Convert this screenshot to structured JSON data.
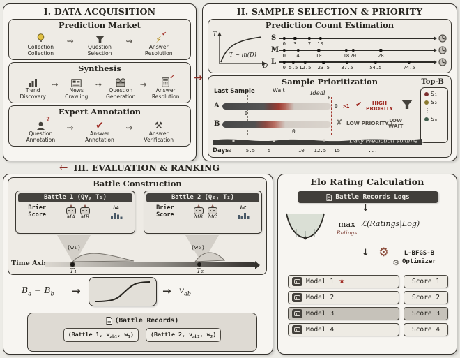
{
  "glyphs": {
    "squiggle": "⇝",
    "arrow_right": "→",
    "arrow_left": "←",
    "arrow_down": "↓",
    "check": "✔",
    "cross": "✘",
    "star": "★",
    "bolt": "⚡",
    "hammer": "⚒",
    "gear": "⚙",
    "qmark": "?"
  },
  "acquisition": {
    "title": "I. DATA ACQUISITION",
    "market": {
      "title": "Prediction Market",
      "steps": [
        "Collection\nCollection",
        "Question\nSelection",
        "Answer\nResolution"
      ]
    },
    "synthesis": {
      "title": "Synthesis",
      "steps": [
        "Trend\nDiscovery",
        "News\nCrawling",
        "Question\nGeneration",
        "Answer\nResolution"
      ]
    },
    "expert": {
      "title": "Expert Annotation",
      "steps": [
        "Question\nAnnotation",
        "Answer\nAnnotation",
        "Answer\nVerification"
      ]
    }
  },
  "selection": {
    "title": "II. SAMPLE SELECTION & PRIORITY",
    "estimation": {
      "title": "Prediction Count Estimation",
      "axis_y": "T",
      "axis_x": "D",
      "formula": "T ~ ln(D)",
      "rows": [
        {
          "label": "S",
          "ticks": [
            "0",
            "3",
            "7",
            "10"
          ]
        },
        {
          "label": "M",
          "ticks": [
            "0",
            "4",
            "10",
            "18",
            "20",
            "28"
          ]
        },
        {
          "label": "L",
          "ticks": [
            "0",
            "5.5",
            "12.5",
            "23.5",
            "37.5",
            "54.5",
            "74.5"
          ]
        }
      ]
    },
    "prioritization": {
      "title": "Sample Prioritization",
      "top_b": "Top-B",
      "last_sample": "Last Sample",
      "wait": "Wait",
      "ideal": "Ideal",
      "row_a": {
        "label": "A",
        "tick0": "0",
        "mid0": "0",
        "gt1": ">1",
        "verdict": "HIGH\nPRIORITY"
      },
      "row_b": {
        "label": "B",
        "tick0": "0",
        "verdict": "LOW PRIORITY /",
        "verdict2": "LOW\nWAIT"
      },
      "volume": "Daily Prediction Volume",
      "days": "Days",
      "day_ticks": [
        "0",
        "5.5",
        "5",
        "10",
        "12.5",
        "15",
        "..."
      ],
      "slots": [
        {
          "label": "S₁",
          "color": "#7c2f2f"
        },
        {
          "label": "S₂",
          "color": "#8a7a30"
        },
        {
          "label": "⋮",
          "color": ""
        },
        {
          "label": "Sₙ",
          "color": "#43604f"
        }
      ]
    }
  },
  "evaluation": {
    "title": "III. EVALUATION & RANKING",
    "construction": {
      "title": "Battle Construction",
      "cards": [
        {
          "header": "Battle 1 (Qy, T₁)",
          "brier": "Brier\nScore",
          "models": [
            "MA",
            "MB"
          ],
          "hist": "bA"
        },
        {
          "header": "Battle 2 (Q₂, T₂)",
          "brier": "Brier\nScore",
          "models": [
            "MB",
            "MC"
          ],
          "hist": "bC"
        }
      ],
      "axis_label": "Time Axis",
      "w1": "(w₁)",
      "w2": "(w₂)",
      "t1": "T₁",
      "t2": "T₂"
    },
    "formula": {
      "b1": "B",
      "s1": "a",
      "minus": "−",
      "b2": "B",
      "s2": "b",
      "v": "v",
      "sv": "ab"
    },
    "records": {
      "header": "(Battle Records)",
      "p1": {
        "a": "(Battle 1, v",
        "s1": "ab1",
        "b": ", w",
        "s2": "1",
        "c": ")"
      },
      "p2": {
        "a": "(Battle 2, v",
        "s1": "ab2",
        "b": ", w",
        "s2": "2",
        "c": ")"
      }
    }
  },
  "elo": {
    "title": "Elo Rating Calculation",
    "log_pill": "Battle Records Logs",
    "max_label": "max",
    "max_sub": "Ratings",
    "likelihood": "ℒ(Ratings|Log)",
    "optimizer": "L-BFGS-B\nOptimizer",
    "table": [
      {
        "model": "Model 1",
        "score": "Score 1",
        "star": true,
        "highlight": false
      },
      {
        "model": "Model 2",
        "score": "Score 2",
        "star": false,
        "highlight": false
      },
      {
        "model": "Model 3",
        "score": "Score 3",
        "star": false,
        "highlight": true
      },
      {
        "model": "Model 4",
        "score": "Score 4",
        "star": false,
        "highlight": false
      }
    ]
  }
}
